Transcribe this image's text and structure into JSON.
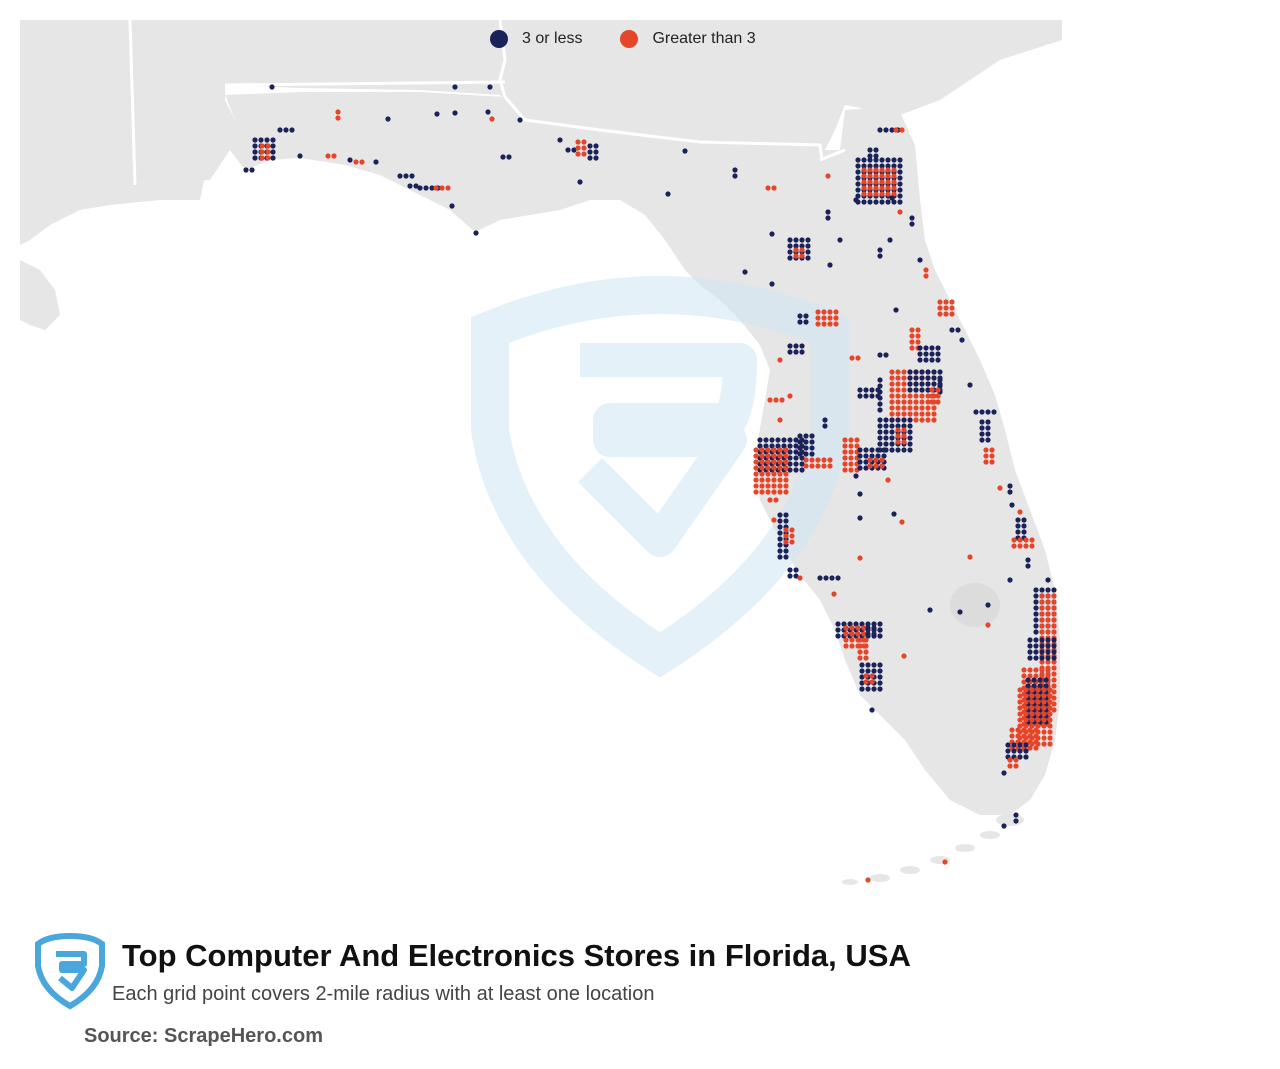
{
  "legend": {
    "items": [
      {
        "label": "3 or less",
        "color": "#1b2259"
      },
      {
        "label": "Greater than 3",
        "color": "#e5462a"
      }
    ]
  },
  "map": {
    "land_color": "#e6e6e6",
    "border_color": "#ffffff",
    "watermark_color": "#cfe6f3",
    "watermark_name": "scrapehero-shield-watermark"
  },
  "footer": {
    "logo_name": "scrapehero-logo-icon",
    "logo_color": "#4aa7dc",
    "title": "Top Computer And Electronics Stores in Florida, USA",
    "subtitle": "Each grid point covers 2-mile radius with at least one location",
    "source": "Source: ScrapeHero.com"
  }
}
